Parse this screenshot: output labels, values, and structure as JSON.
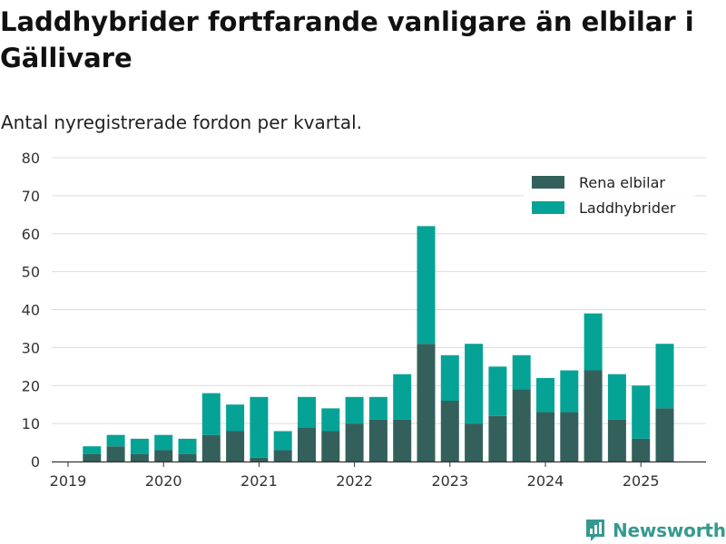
{
  "title": "Laddhybrider fortfarande vanligare än elbilar i Gällivare",
  "subtitle": "Antal nyregistrerade fordon per kvartal.",
  "brand": "Newsworthy",
  "colors": {
    "elbilar": "#34605c",
    "laddhybrider": "#05a396",
    "grid": "#dcdcdc",
    "axis": "#333333",
    "brand": "#35998f"
  },
  "chart_data": {
    "type": "bar",
    "stacked": true,
    "title": "Laddhybrider fortfarande vanligare än elbilar i Gällivare",
    "subtitle": "Antal nyregistrerade fordon per kvartal.",
    "xlabel": "",
    "ylabel": "",
    "ylim": [
      0,
      80
    ],
    "yticks": [
      0,
      10,
      20,
      30,
      40,
      50,
      60,
      70,
      80
    ],
    "xticks": [
      "2019",
      "2020",
      "2021",
      "2022",
      "2023",
      "2024",
      "2025"
    ],
    "grid": true,
    "legend_position": "top-right",
    "categories": [
      "2019 Q2",
      "2019 Q3",
      "2019 Q4",
      "2020 Q1",
      "2020 Q2",
      "2020 Q3",
      "2020 Q4",
      "2021 Q1",
      "2021 Q2",
      "2021 Q3",
      "2021 Q4",
      "2022 Q1",
      "2022 Q2",
      "2022 Q3",
      "2022 Q4",
      "2023 Q1",
      "2023 Q2",
      "2023 Q3",
      "2023 Q4",
      "2024 Q1",
      "2024 Q2",
      "2024 Q3",
      "2024 Q4",
      "2025 Q1",
      "2025 Q2"
    ],
    "series": [
      {
        "name": "Rena elbilar",
        "values": [
          2,
          4,
          2,
          3,
          2,
          7,
          8,
          1,
          3,
          9,
          8,
          10,
          11,
          11,
          31,
          16,
          10,
          12,
          19,
          13,
          13,
          24,
          11,
          6,
          14
        ]
      },
      {
        "name": "Laddhybrider",
        "values": [
          2,
          3,
          4,
          4,
          4,
          11,
          7,
          16,
          5,
          8,
          6,
          7,
          6,
          12,
          31,
          12,
          21,
          13,
          9,
          9,
          11,
          15,
          12,
          14,
          17
        ]
      }
    ]
  }
}
